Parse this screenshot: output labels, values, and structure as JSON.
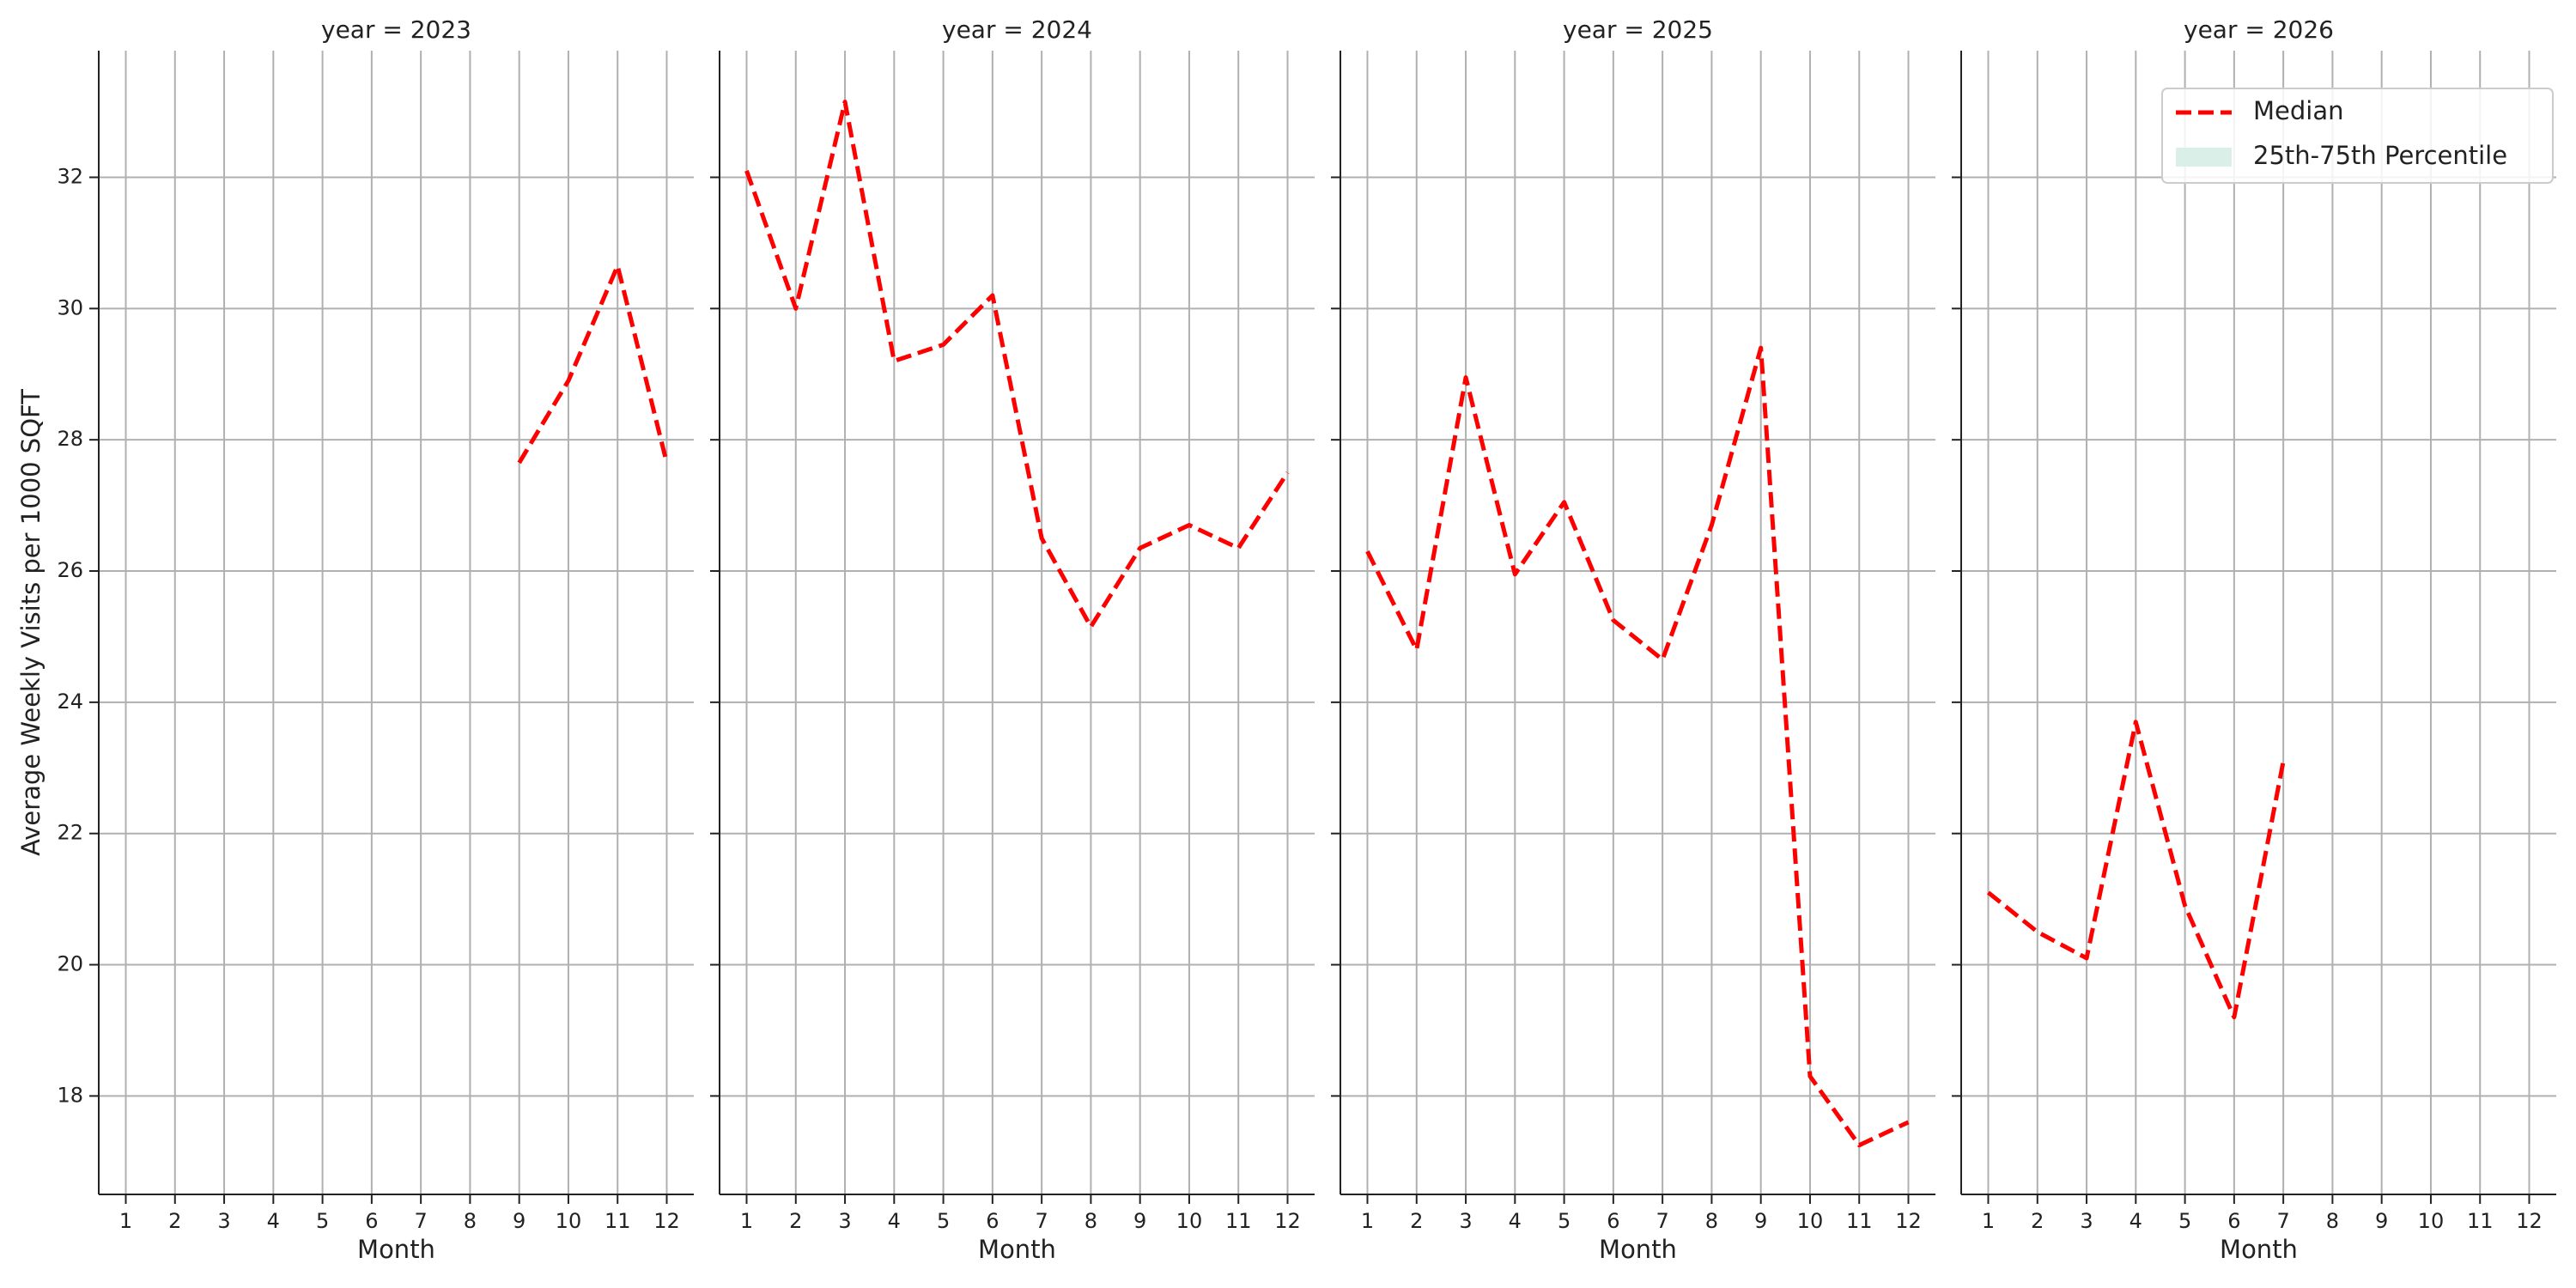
{
  "chart_data": [
    {
      "type": "line",
      "title": "year = 2023",
      "xlabel": "Month",
      "ylabel": "Average Weekly Visits per 1000 SQFT",
      "x": [
        1,
        2,
        3,
        4,
        5,
        6,
        7,
        8,
        9,
        10,
        11,
        12
      ],
      "series": [
        {
          "color": "#ff0000",
          "values": [
            null,
            null,
            null,
            null,
            null,
            null,
            null,
            null,
            27.65,
            28.9,
            30.65,
            27.65
          ]
        }
      ],
      "xlim": [
        0.45,
        12.55
      ],
      "xticks": [
        1,
        2,
        3,
        4,
        5,
        6,
        7,
        8,
        9,
        10,
        11,
        12
      ],
      "ylim": [
        16.5,
        33.93
      ],
      "yticks": [
        18,
        20,
        22,
        24,
        26,
        28,
        30,
        32
      ],
      "grid": true
    },
    {
      "type": "line",
      "title": "year = 2024",
      "xlabel": "Month",
      "x": [
        1,
        2,
        3,
        4,
        5,
        6,
        7,
        8,
        9,
        10,
        11,
        12
      ],
      "series": [
        {
          "color": "#ff0000",
          "values": [
            32.1,
            30.0,
            33.15,
            29.2,
            29.45,
            30.2,
            26.5,
            25.15,
            26.35,
            26.7,
            26.35,
            27.5
          ]
        }
      ],
      "xlim": [
        0.45,
        12.55
      ],
      "xticks": [
        1,
        2,
        3,
        4,
        5,
        6,
        7,
        8,
        9,
        10,
        11,
        12
      ],
      "ylim": [
        16.5,
        33.93
      ],
      "yticks": [
        18,
        20,
        22,
        24,
        26,
        28,
        30,
        32
      ],
      "grid": true
    },
    {
      "type": "line",
      "title": "year = 2025",
      "xlabel": "Month",
      "x": [
        1,
        2,
        3,
        4,
        5,
        6,
        7,
        8,
        9,
        10,
        11,
        12
      ],
      "series": [
        {
          "color": "#ff0000",
          "values": [
            26.3,
            24.8,
            28.95,
            25.95,
            27.05,
            25.25,
            24.65,
            26.7,
            29.4,
            18.3,
            17.25,
            17.6
          ]
        }
      ],
      "xlim": [
        0.45,
        12.55
      ],
      "xticks": [
        1,
        2,
        3,
        4,
        5,
        6,
        7,
        8,
        9,
        10,
        11,
        12
      ],
      "ylim": [
        16.5,
        33.93
      ],
      "yticks": [
        18,
        20,
        22,
        24,
        26,
        28,
        30,
        32
      ],
      "grid": true
    },
    {
      "type": "line",
      "title": "year = 2026",
      "xlabel": "Month",
      "x": [
        1,
        2,
        3,
        4,
        5,
        6,
        7,
        8,
        9,
        10,
        11,
        12
      ],
      "series": [
        {
          "color": "#ff0000",
          "values": [
            21.1,
            20.5,
            20.1,
            23.7,
            20.9,
            19.2,
            23.1,
            null,
            null,
            null,
            null,
            null
          ]
        }
      ],
      "xlim": [
        0.45,
        12.55
      ],
      "xticks": [
        1,
        2,
        3,
        4,
        5,
        6,
        7,
        8,
        9,
        10,
        11,
        12
      ],
      "ylim": [
        16.5,
        33.93
      ],
      "yticks": [
        18,
        20,
        22,
        24,
        26,
        28,
        30,
        32
      ],
      "grid": true,
      "legend": {
        "corner": "upper right",
        "items": [
          {
            "label": "Median",
            "color": "#ff0000",
            "style": "dashed"
          },
          {
            "label": "25th-75th Percentile",
            "color": "#d9efe8",
            "style": "patch"
          }
        ]
      }
    }
  ]
}
